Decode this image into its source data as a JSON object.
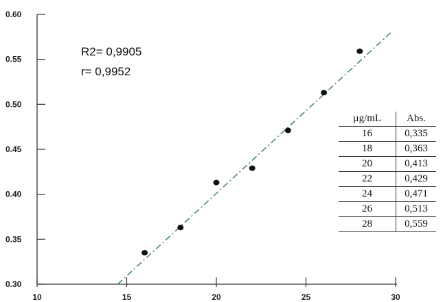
{
  "chart_data": {
    "type": "scatter",
    "x_ticks": [
      10,
      15,
      20,
      25,
      30
    ],
    "y_ticks": [
      "0.30",
      "0.35",
      "0.40",
      "0.45",
      "0.50",
      "0.55",
      "0.60"
    ],
    "xlim": [
      10,
      30
    ],
    "ylim": [
      0.3,
      0.6
    ],
    "points": [
      {
        "x": 16,
        "y": 0.335
      },
      {
        "x": 18,
        "y": 0.363
      },
      {
        "x": 20,
        "y": 0.413
      },
      {
        "x": 22,
        "y": 0.429
      },
      {
        "x": 24,
        "y": 0.471
      },
      {
        "x": 26,
        "y": 0.513
      },
      {
        "x": 28,
        "y": 0.559
      }
    ],
    "trendline": {
      "x_start": 14.5,
      "y_start": 0.3,
      "x_end": 29.8,
      "y_end": 0.581
    },
    "annotations": {
      "r2": "R2= 0,9905",
      "r": "r= 0,9952"
    },
    "table": {
      "headers": [
        "µg/mL",
        "Abs."
      ],
      "rows": [
        [
          "16",
          "0,335"
        ],
        [
          "18",
          "0,363"
        ],
        [
          "20",
          "0,413"
        ],
        [
          "22",
          "0,429"
        ],
        [
          "24",
          "0,471"
        ],
        [
          "26",
          "0,513"
        ],
        [
          "28",
          "0,559"
        ]
      ]
    },
    "grid": false,
    "colors": {
      "axis": "#333333",
      "point": "#111111",
      "trendline": "#4a8a6a"
    }
  }
}
